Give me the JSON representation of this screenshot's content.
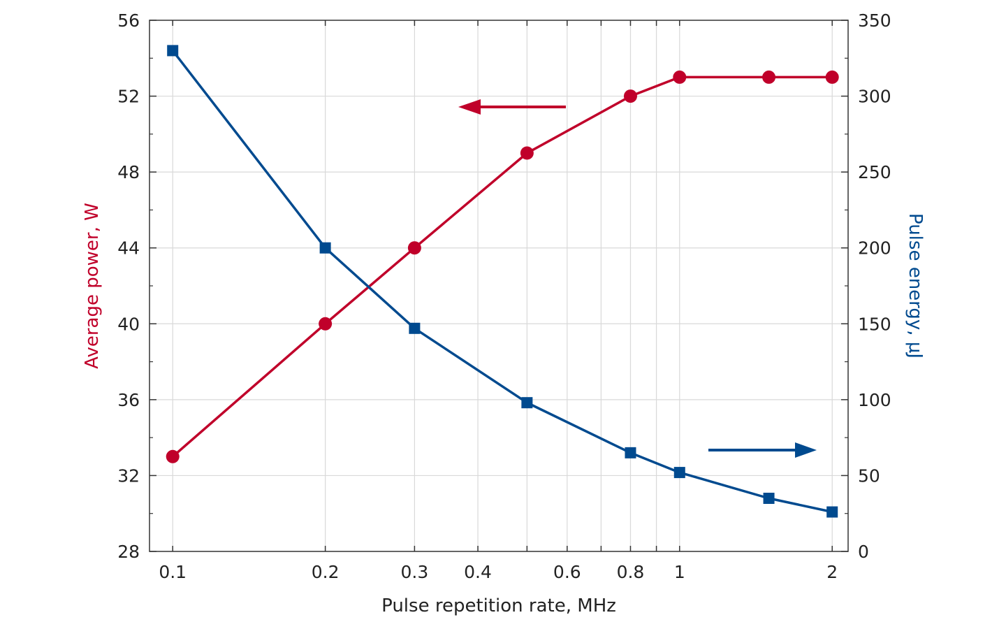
{
  "chart_data": {
    "type": "line",
    "xlabel": "Pulse repetition rate, MHz",
    "ylabel_left": "Average power, W",
    "ylabel_right": "Pulse energy, μJ",
    "x_scale": "log",
    "xlim": [
      0.09,
      2.15
    ],
    "x_ticks": [
      0.1,
      0.2,
      0.3,
      0.4,
      0.6,
      0.8,
      1,
      2
    ],
    "x_tick_labels": [
      "0.1",
      "0.2",
      "0.3",
      "0.4",
      "0.6",
      "0.8",
      "1",
      "2"
    ],
    "x_minor_gridlines": [
      0.5,
      0.7,
      0.9
    ],
    "ylim_left": [
      28,
      56
    ],
    "y_ticks_left": [
      28,
      32,
      36,
      40,
      44,
      48,
      52,
      56
    ],
    "y_tick_labels_left": [
      "28",
      "32",
      "36",
      "40",
      "44",
      "48",
      "52",
      "56"
    ],
    "ylim_right": [
      0,
      350
    ],
    "y_ticks_right": [
      0,
      50,
      100,
      150,
      200,
      250,
      300,
      350
    ],
    "y_tick_labels_right": [
      "0",
      "50",
      "100",
      "150",
      "200",
      "250",
      "300",
      "350"
    ],
    "grid": true,
    "series": [
      {
        "axis": "left",
        "marker": "circle",
        "color": "#c0002a",
        "x": [
          0.1,
          0.2,
          0.3,
          0.5,
          0.8,
          1,
          1.5,
          2
        ],
        "values": [
          33,
          40,
          44,
          49,
          52,
          53,
          53,
          53
        ]
      },
      {
        "axis": "right",
        "marker": "square",
        "color": "#004a8f",
        "x": [
          0.1,
          0.2,
          0.3,
          0.5,
          0.8,
          1,
          1.5,
          2
        ],
        "values": [
          330,
          200,
          147,
          98,
          65,
          52,
          35,
          26
        ]
      }
    ],
    "annotations": [
      {
        "type": "arrow",
        "direction": "left",
        "points_to": "left axis",
        "color": "#c0002a"
      },
      {
        "type": "arrow",
        "direction": "right",
        "points_to": "right axis",
        "color": "#004a8f"
      }
    ]
  }
}
